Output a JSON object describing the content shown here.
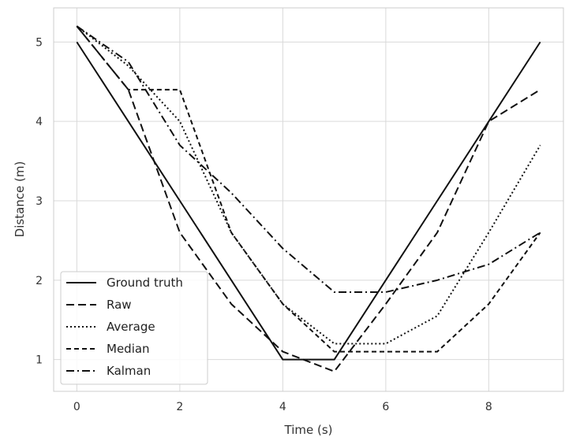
{
  "chart_data": {
    "type": "line",
    "xlabel": "Time (s)",
    "ylabel": "Distance (m)",
    "xlim": [
      -0.45,
      9.45
    ],
    "ylim": [
      0.6,
      5.43
    ],
    "xticks": [
      0,
      2,
      4,
      6,
      8
    ],
    "yticks": [
      1,
      2,
      3,
      4,
      5
    ],
    "grid": true,
    "legend_position": "lower-left",
    "x": [
      0,
      1,
      2,
      3,
      4,
      5,
      6,
      7,
      8,
      9
    ],
    "series": [
      {
        "name": "Ground truth",
        "dash": "solid",
        "values": [
          5.0,
          4.0,
          3.0,
          2.0,
          1.0,
          1.0,
          2.0,
          3.0,
          4.0,
          5.0
        ]
      },
      {
        "name": "Raw",
        "dash": "dashed",
        "values": [
          5.2,
          4.4,
          2.6,
          1.7,
          1.1,
          0.85,
          1.7,
          2.6,
          4.0,
          4.4
        ]
      },
      {
        "name": "Average",
        "dash": "dotted",
        "values": [
          5.2,
          4.7,
          4.0,
          2.6,
          1.7,
          1.2,
          1.2,
          1.55,
          2.6,
          3.7
        ]
      },
      {
        "name": "Median",
        "dash": "dashed-short",
        "values": [
          5.2,
          4.4,
          4.4,
          2.6,
          1.7,
          1.1,
          1.1,
          1.1,
          1.7,
          2.6
        ]
      },
      {
        "name": "Kalman",
        "dash": "dashdot",
        "values": [
          5.2,
          4.75,
          3.7,
          3.1,
          2.4,
          1.85,
          1.85,
          2.0,
          2.2,
          2.6
        ]
      }
    ],
    "colors": {
      "line": "#111111",
      "grid": "#d9d9d9",
      "frame": "#cccccc"
    }
  }
}
